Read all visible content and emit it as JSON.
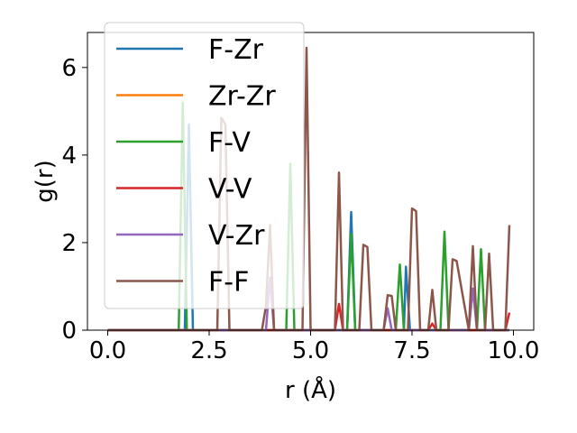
{
  "chart_data": {
    "type": "line",
    "xlabel": "r (Å)",
    "ylabel": "g(r)",
    "xlim": [
      -0.5,
      10.5
    ],
    "ylim": [
      0,
      6.8
    ],
    "xticks": [
      0.0,
      2.5,
      5.0,
      7.5,
      10.0
    ],
    "xtick_labels": [
      "0.0",
      "2.5",
      "5.0",
      "7.5",
      "10.0"
    ],
    "yticks": [
      0,
      2,
      4,
      6
    ],
    "ytick_labels": [
      "0",
      "2",
      "4",
      "6"
    ],
    "grid": false,
    "legend": "upper-left",
    "series": [
      {
        "name": "F-Zr",
        "color": "#1f77b4",
        "x": [
          0,
          1.9,
          2.0,
          2.1,
          5.9,
          6.0,
          6.1,
          7.3,
          7.35,
          7.45,
          9.9
        ],
        "y": [
          0,
          0,
          4.7,
          0,
          0,
          2.7,
          0,
          0,
          1.45,
          0,
          0
        ]
      },
      {
        "name": "Zr-Zr",
        "color": "#ff7f0e",
        "x": [
          0,
          9.9
        ],
        "y": [
          0,
          0
        ]
      },
      {
        "name": "F-V",
        "color": "#2ca02c",
        "x": [
          0,
          1.75,
          1.85,
          1.95,
          4.4,
          4.5,
          4.6,
          5.9,
          6.0,
          6.1,
          7.1,
          7.2,
          7.3,
          8.2,
          8.3,
          8.4,
          9.1,
          9.2,
          9.3,
          9.9
        ],
        "y": [
          0,
          0,
          5.2,
          0,
          0,
          3.8,
          0,
          0,
          2.2,
          0,
          0,
          1.5,
          0,
          0,
          2.25,
          0,
          0,
          1.85,
          0,
          0
        ]
      },
      {
        "name": "V-V",
        "color": "#d62728",
        "x": [
          0,
          5.6,
          5.7,
          5.8,
          7.9,
          8.0,
          8.1,
          9.8,
          9.9
        ],
        "y": [
          0,
          0,
          0.6,
          0,
          0,
          0.15,
          0,
          0,
          0.4
        ]
      },
      {
        "name": "V-Zr",
        "color": "#9467bd",
        "x": [
          0,
          3.9,
          4.0,
          4.1,
          6.8,
          6.9,
          7.0,
          8.9,
          9.0,
          9.1,
          9.9
        ],
        "y": [
          0,
          0,
          1.2,
          0,
          0,
          0.5,
          0,
          0,
          0.95,
          0,
          0
        ]
      },
      {
        "name": "F-F",
        "color": "#8c564b",
        "x": [
          0,
          2.7,
          2.8,
          2.9,
          3.0,
          3.8,
          3.9,
          4.0,
          4.1,
          4.8,
          4.9,
          5.0,
          5.6,
          5.7,
          5.8,
          6.2,
          6.3,
          6.4,
          6.5,
          6.8,
          6.9,
          7.0,
          7.1,
          7.4,
          7.5,
          7.6,
          7.7,
          7.9,
          8.0,
          8.1,
          8.4,
          8.5,
          8.6,
          8.9,
          9.0,
          9.1,
          9.3,
          9.4,
          9.5,
          9.8,
          9.9
        ],
        "y": [
          0,
          0,
          4.85,
          4.7,
          0,
          0,
          0.55,
          2.4,
          0,
          0,
          6.45,
          0,
          0,
          3.6,
          0,
          0,
          1.95,
          1.9,
          0,
          0,
          0.8,
          0.78,
          0,
          0,
          2.78,
          2.72,
          0,
          0,
          0.92,
          0,
          0,
          1.62,
          1.58,
          0,
          1.92,
          0,
          0,
          1.75,
          0,
          0,
          2.4
        ]
      }
    ]
  }
}
